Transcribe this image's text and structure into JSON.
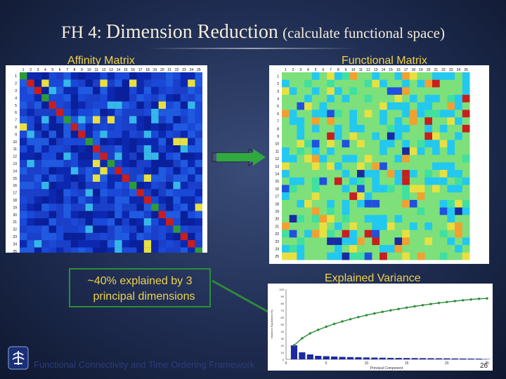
{
  "title": {
    "prefix": "FH 4:",
    "main": "Dimension Reduction",
    "paren": "(calculate functional space)"
  },
  "affinity_label": "Affinity Matrix",
  "functional_label": "Functional Matrix",
  "matrix_tick_labels": [
    "1",
    "2",
    "3",
    "4",
    "5",
    "6",
    "7",
    "8",
    "9",
    "10",
    "11",
    "12",
    "13",
    "14",
    "15",
    "16",
    "17",
    "18",
    "19",
    "20",
    "21",
    "22",
    "23",
    "24",
    "25"
  ],
  "explained_box": {
    "line1": "~40% explained by 3",
    "line2": "principal dimensions"
  },
  "explained_label": "Explained Variance",
  "footer_text": "Functional Connectivity and Time Ordering Framework",
  "page_number": "26",
  "colors": {
    "title": "#f2ecd8",
    "labels": "#f0d24a",
    "box_border": "#2e8b3a",
    "curve": "#2e8b3a",
    "bars": "#1a2aa0",
    "matrix_background_affinity": "#1a3fc8",
    "matrix_background_functional": "#7ee07a"
  },
  "chart_data": {
    "type": "bar",
    "title": "",
    "xlabel": "Principal Component",
    "ylabel": "Variance Explained (%)",
    "x": [
      1,
      2,
      3,
      4,
      5,
      6,
      7,
      8,
      9,
      10,
      11,
      12,
      13,
      14,
      15,
      16,
      17,
      18,
      19,
      20,
      21,
      22,
      23,
      24,
      25
    ],
    "xticks": [
      "0",
      "5",
      "10",
      "15",
      "20",
      "25"
    ],
    "yticks": [
      "0",
      "10",
      "20",
      "30",
      "40",
      "50",
      "60",
      "70",
      "80",
      "90",
      "100"
    ],
    "ylim": [
      0,
      100
    ],
    "series": [
      {
        "name": "",
        "type": "bar",
        "values": [
          20,
          10,
          7,
          5,
          4.5,
          4,
          3.5,
          3.2,
          3,
          2.7,
          2.5,
          2.3,
          2.1,
          2,
          1.9,
          1.8,
          1.7,
          1.6,
          1.5,
          1.4,
          1.3,
          1.2,
          1.1,
          1,
          0.5
        ]
      },
      {
        "name": "",
        "type": "line",
        "values": [
          20,
          30,
          37,
          42,
          46.5,
          50.5,
          54,
          57.2,
          60.2,
          62.9,
          65.4,
          67.7,
          69.8,
          71.8,
          73.7,
          75.5,
          77.2,
          78.8,
          80.3,
          81.7,
          83,
          84.2,
          85.3,
          86.3,
          86.8
        ]
      }
    ],
    "grid": false
  }
}
